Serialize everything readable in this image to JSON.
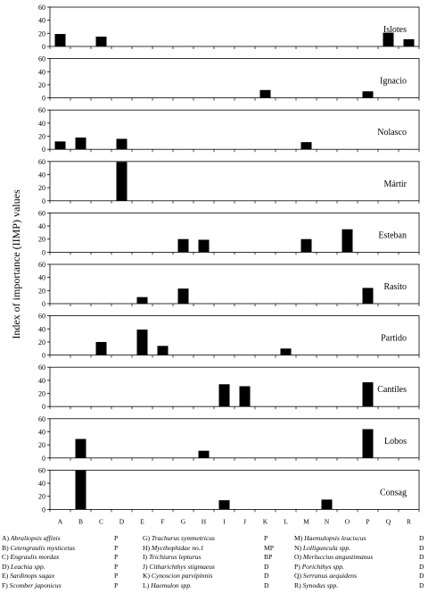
{
  "chart_data": {
    "type": "bar",
    "ylabel": "Index of importance (IIMP) values",
    "categories": [
      "A",
      "B",
      "C",
      "D",
      "E",
      "F",
      "G",
      "H",
      "I",
      "J",
      "K",
      "L",
      "M",
      "N",
      "O",
      "P",
      "Q",
      "R"
    ],
    "ylim": [
      0,
      60
    ],
    "yticks": [
      0,
      20,
      40,
      60
    ],
    "panels": [
      {
        "name": "Islotes",
        "values": {
          "A": 19,
          "C": 15,
          "Q": 21,
          "R": 11
        }
      },
      {
        "name": "Ignacio",
        "values": {
          "K": 12,
          "P": 10
        }
      },
      {
        "name": "Nolasco",
        "values": {
          "A": 12,
          "B": 18,
          "D": 16,
          "M": 11
        }
      },
      {
        "name": "Mártir",
        "values": {
          "D": 62
        }
      },
      {
        "name": "Esteban",
        "values": {
          "G": 20,
          "H": 19,
          "M": 20,
          "O": 35
        }
      },
      {
        "name": "Rasito",
        "values": {
          "E": 10,
          "G": 23,
          "P": 24
        }
      },
      {
        "name": "Partido",
        "values": {
          "C": 20,
          "E": 39,
          "F": 14,
          "L": 10
        }
      },
      {
        "name": "Cantiles",
        "values": {
          "I": 34,
          "J": 31,
          "P": 37
        }
      },
      {
        "name": "Lobos",
        "values": {
          "B": 29,
          "H": 11,
          "P": 44
        }
      },
      {
        "name": "Consag",
        "values": {
          "B": 62,
          "I": 14,
          "N": 15
        }
      }
    ]
  },
  "legend": [
    {
      "letter": "A)",
      "name": "Abraliopsis affinis",
      "code": "P"
    },
    {
      "letter": "B)",
      "name": "Cetengraulis mysticetus",
      "code": "P"
    },
    {
      "letter": "C)",
      "name": "Engraulis mordax",
      "code": "P"
    },
    {
      "letter": "D)",
      "name": "Leachia spp.",
      "code": "P"
    },
    {
      "letter": "E)",
      "name": "Sardinops sagax",
      "code": "P"
    },
    {
      "letter": "F)",
      "name": "Scomber  japonicus",
      "code": "P"
    },
    {
      "letter": "G)",
      "name": "Trachurus symmetricus",
      "code": "P"
    },
    {
      "letter": "H)",
      "name": "Mycthophidae no.1",
      "code": "MP"
    },
    {
      "letter": "I)",
      "name": "Trichiurus lepturus",
      "code": "BP"
    },
    {
      "letter": "J)",
      "name": "Citharichthys stigmaeus",
      "code": "D"
    },
    {
      "letter": "K)",
      "name": "Cynoscion parvipinnis",
      "code": "D"
    },
    {
      "letter": "L)",
      "name": "Haemulon spp.",
      "code": "D"
    },
    {
      "letter": "M)",
      "name": "Haemulopsis leuciscus",
      "code": "D"
    },
    {
      "letter": "N)",
      "name": "Lolliguncula   spp.",
      "code": "D"
    },
    {
      "letter": "O)",
      "name": "Merluccius     angustimanus",
      "code": "D"
    },
    {
      "letter": "P)",
      "name": "Porichthys     spp.",
      "code": "D"
    },
    {
      "letter": "Q)",
      "name": "Serranus     aequidens",
      "code": "D"
    },
    {
      "letter": "R)",
      "name": "Synodus    spp.",
      "code": "D"
    }
  ]
}
